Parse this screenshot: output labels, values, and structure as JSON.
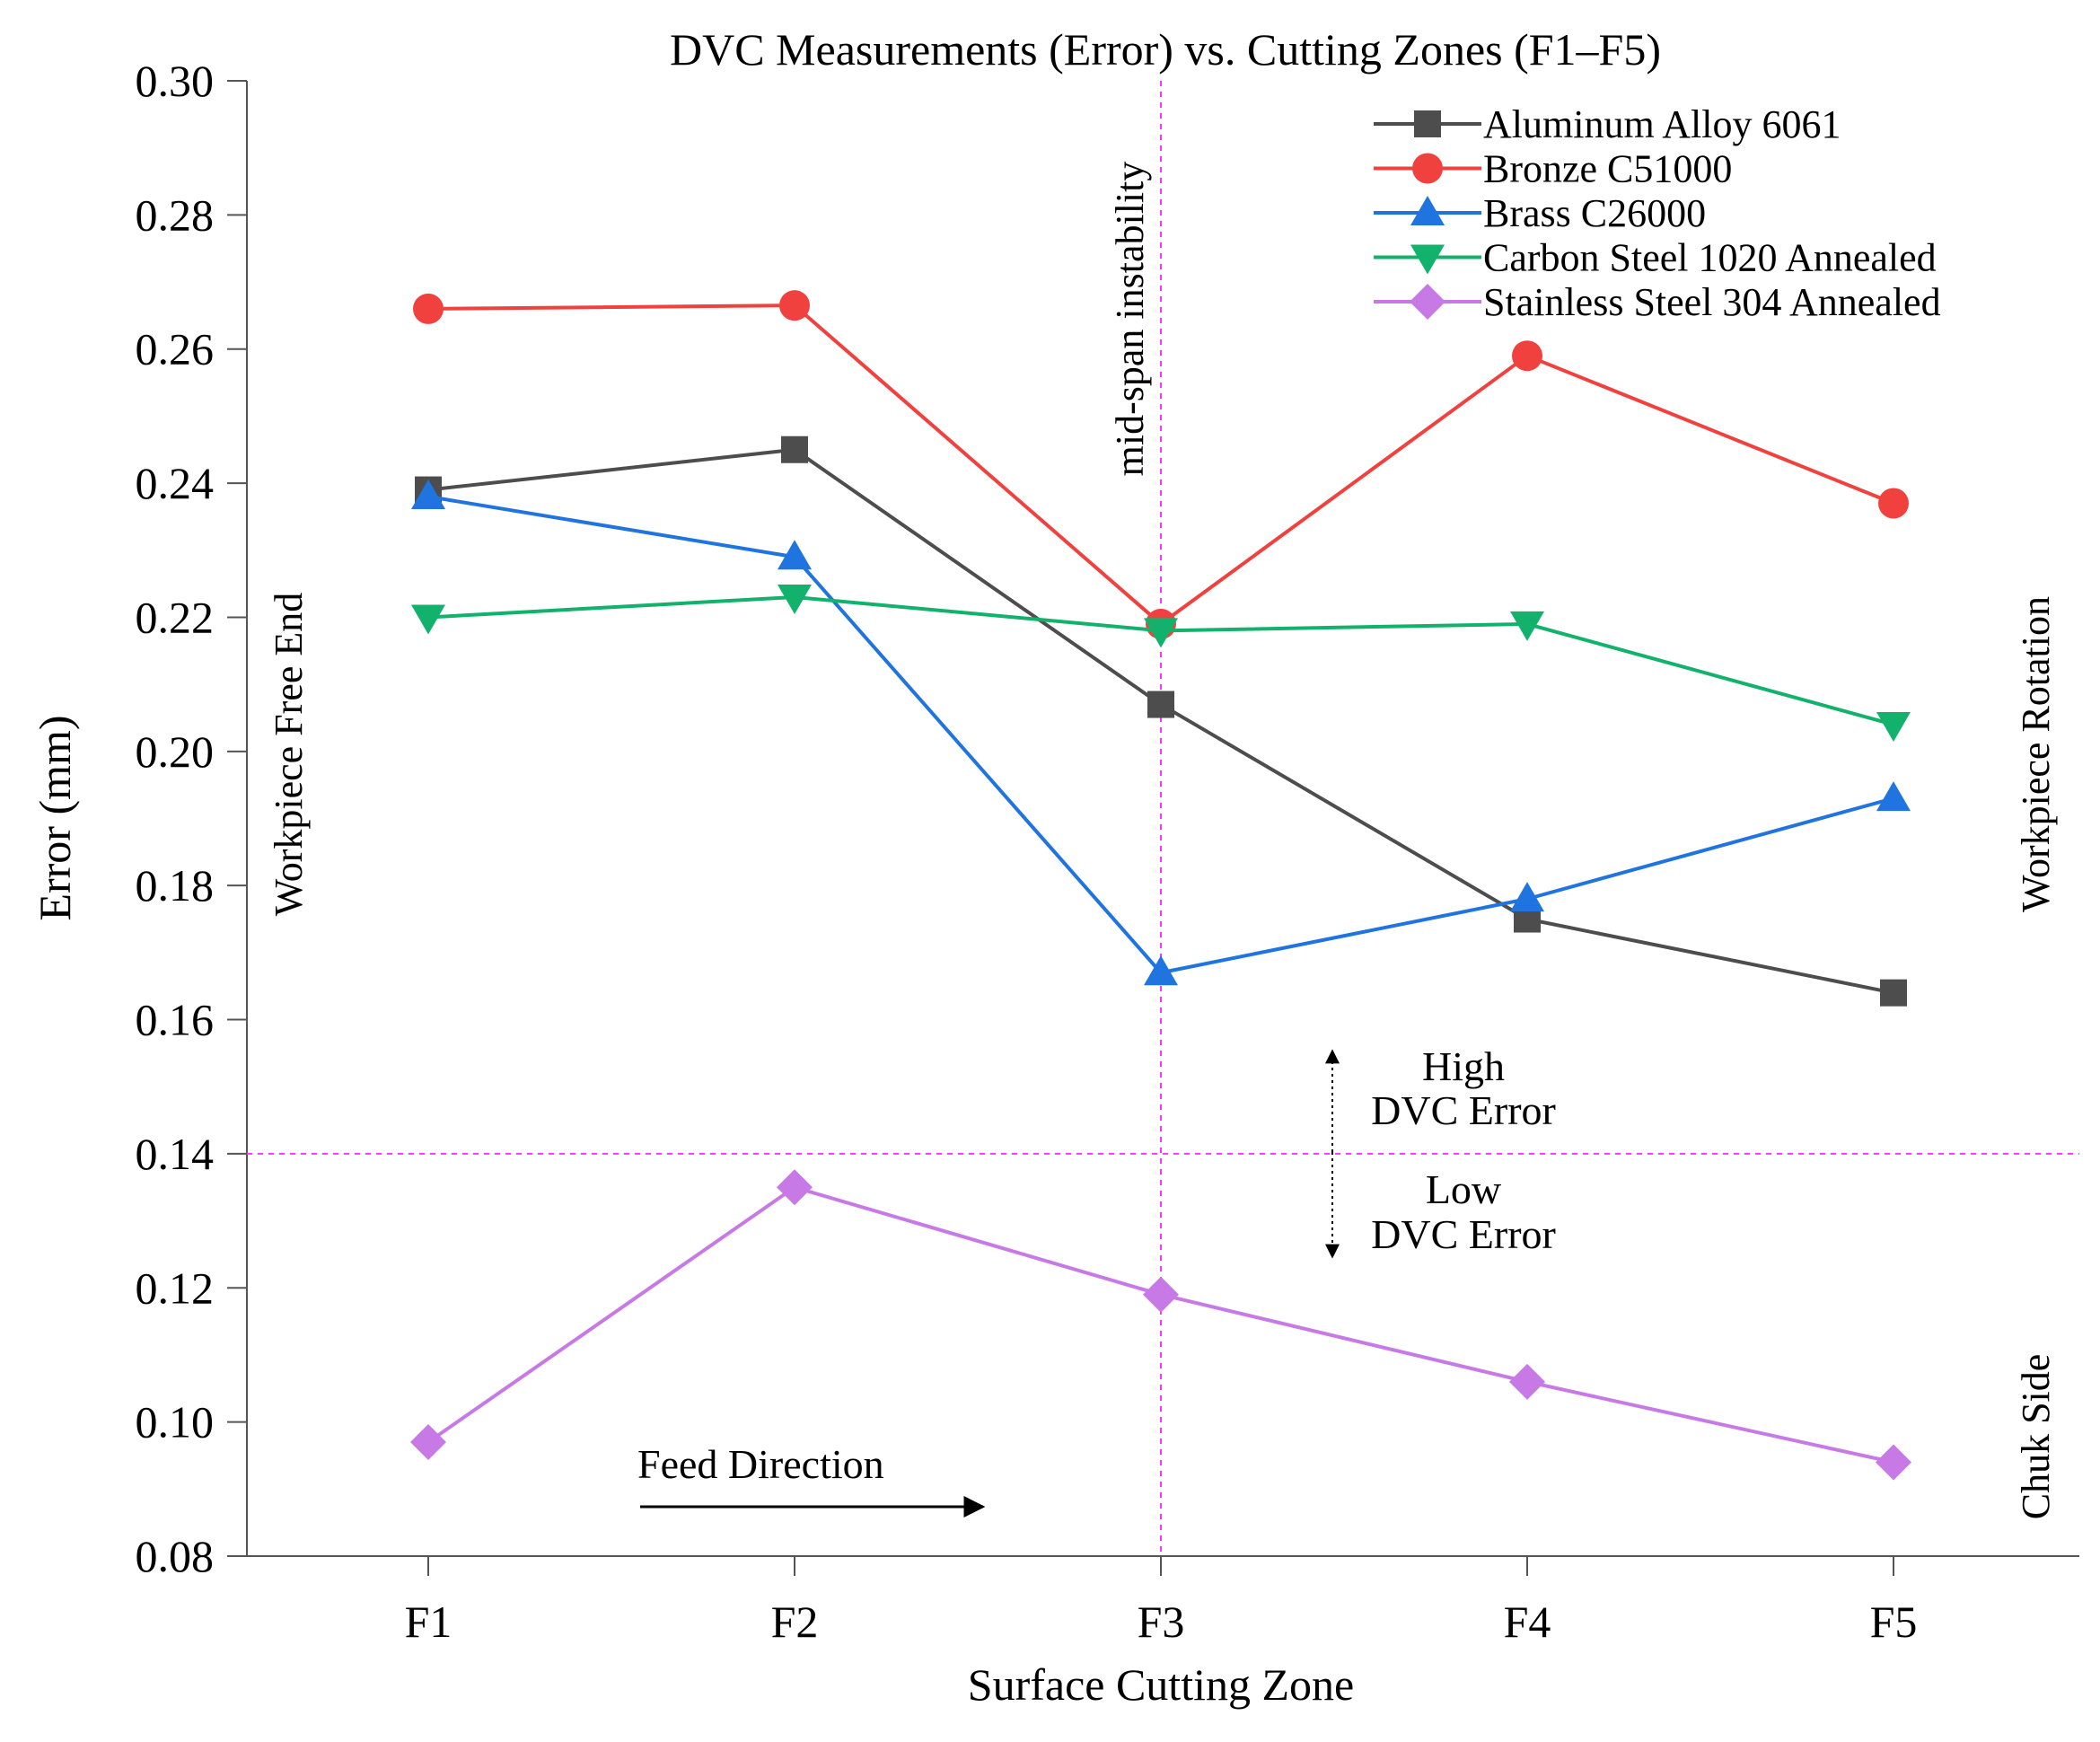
{
  "chart_data": {
    "type": "line",
    "title": "DVC Measurements (Error) vs. Cutting Zones (F1–F5)",
    "xlabel": "Surface Cutting Zone",
    "ylabel": "Error (mm)",
    "categories": [
      "F1",
      "F2",
      "F3",
      "F4",
      "F5"
    ],
    "ylim": [
      0.08,
      0.3
    ],
    "yticks": [
      "0.08",
      "0.10",
      "0.12",
      "0.14",
      "0.16",
      "0.18",
      "0.20",
      "0.22",
      "0.24",
      "0.26",
      "0.28",
      "0.30"
    ],
    "grid": false,
    "legend_position": "top-right",
    "series": [
      {
        "name": "Aluminum Alloy 6061",
        "color": "#4d4d4d",
        "marker": "square",
        "values": [
          0.239,
          0.245,
          0.207,
          0.175,
          0.164
        ]
      },
      {
        "name": "Bronze C51000",
        "color": "#f0413f",
        "marker": "circle",
        "values": [
          0.266,
          0.2665,
          0.219,
          0.259,
          0.237
        ]
      },
      {
        "name": "Brass C26000",
        "color": "#1f74e0",
        "marker": "triangle-up",
        "values": [
          0.238,
          0.229,
          0.167,
          0.178,
          0.193
        ]
      },
      {
        "name": "Carbon Steel 1020 Annealed",
        "color": "#13b26c",
        "marker": "triangle-down",
        "values": [
          0.22,
          0.223,
          0.218,
          0.219,
          0.204
        ]
      },
      {
        "name": "Stainless Steel 304 Annealed",
        "color": "#c77ae6",
        "marker": "diamond",
        "values": [
          0.097,
          0.135,
          0.119,
          0.106,
          0.094
        ]
      }
    ],
    "reference_lines": {
      "color": "#ff33ff",
      "vertical_category": "F3",
      "vertical_label": "mid-span instability",
      "horizontal_value": 0.14
    },
    "annotations": {
      "left_side": "Workpiece Free End",
      "right_side_upper": "Workpiece Rotation",
      "right_side_lower": "Chuk Side",
      "high_error_line1": "High",
      "high_error_line2": "DVC Error",
      "low_error_line1": "Low",
      "low_error_line2": "DVC Error",
      "feed_direction": "Feed Direction"
    }
  }
}
